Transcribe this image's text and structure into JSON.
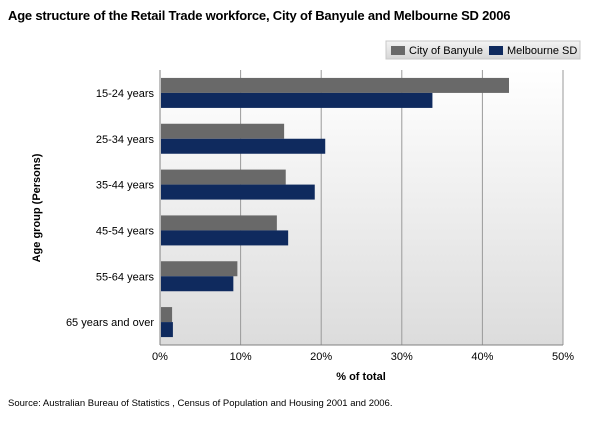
{
  "chart_data": {
    "type": "bar",
    "orientation": "horizontal",
    "title": "Age structure of the Retail Trade workforce, City of Banyule and Melbourne SD 2006",
    "xlabel": "% of total",
    "ylabel": "Age group (Persons)",
    "categories": [
      "15-24 years",
      "25-34 years",
      "35-44 years",
      "45-54 years",
      "55-64 years",
      "65 years and over"
    ],
    "series": [
      {
        "name": "City of Banyule",
        "color": "#696969",
        "values": [
          43.3,
          15.4,
          15.6,
          14.5,
          9.6,
          1.5
        ]
      },
      {
        "name": "Melbourne SD",
        "color": "#0f2a5e",
        "values": [
          33.8,
          20.5,
          19.2,
          15.9,
          9.1,
          1.6
        ]
      }
    ],
    "xlim": [
      0,
      50
    ],
    "xticks": [
      "0%",
      "10%",
      "20%",
      "30%",
      "40%",
      "50%"
    ],
    "grid": true,
    "legend_position": "top-right",
    "source": "Source:  Australian Bureau of Statistics , Census of Population and Housing 2001 and 2006."
  }
}
